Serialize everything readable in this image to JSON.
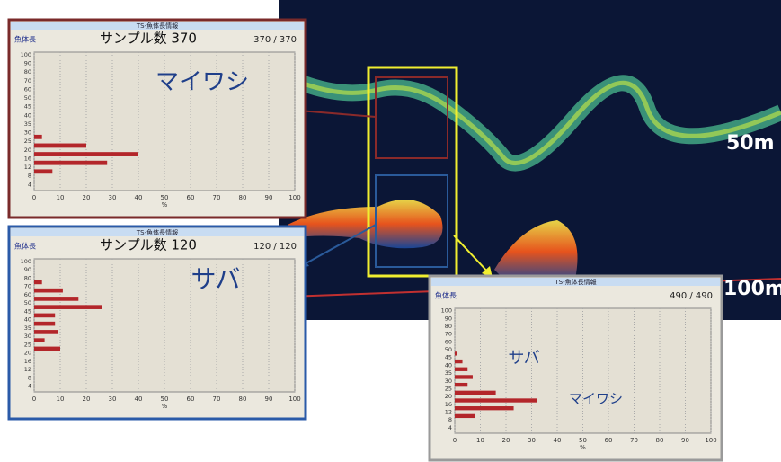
{
  "echogram": {
    "depth_labels": [
      "50m",
      "100m"
    ]
  },
  "chart_data": [
    {
      "type": "bar",
      "orientation": "horizontal",
      "title": "TS-魚体長情報",
      "y_label": "魚体長",
      "sample_label": "サンプル数 370",
      "count": "370 / 370",
      "annotations": [
        "マイワシ"
      ],
      "xlabel": "%",
      "categories": [
        "100",
        "90",
        "80",
        "70",
        "60",
        "50",
        "45",
        "40",
        "35",
        "30",
        "25",
        "20",
        "16",
        "12",
        "8",
        "4"
      ],
      "values": [
        0,
        0,
        0,
        0,
        0,
        0,
        0,
        0,
        0,
        3,
        20,
        40,
        28,
        7,
        0,
        0
      ],
      "color": "#b3262a",
      "xlim": [
        0,
        100
      ],
      "xticks": [
        0,
        10,
        20,
        30,
        40,
        50,
        60,
        70,
        80,
        90,
        100
      ],
      "grid": true
    },
    {
      "type": "bar",
      "orientation": "horizontal",
      "title": "TS-魚体長情報",
      "y_label": "魚体長",
      "sample_label": "サンプル数 120",
      "count": "120 / 120",
      "annotations": [
        "サバ"
      ],
      "xlabel": "%",
      "categories": [
        "100",
        "90",
        "80",
        "70",
        "60",
        "50",
        "45",
        "40",
        "35",
        "30",
        "25",
        "20",
        "16",
        "12",
        "8",
        "4"
      ],
      "values": [
        0,
        0,
        3,
        11,
        17,
        26,
        8,
        8,
        9,
        4,
        10,
        0,
        0,
        0,
        0,
        0
      ],
      "color": "#b3262a",
      "xlim": [
        0,
        100
      ],
      "xticks": [
        0,
        10,
        20,
        30,
        40,
        50,
        60,
        70,
        80,
        90,
        100
      ],
      "grid": true
    },
    {
      "type": "bar",
      "orientation": "horizontal",
      "title": "TS-魚体長情報",
      "y_label": "魚体長",
      "count": "490 / 490",
      "annotations": [
        "サバ",
        "マイワシ"
      ],
      "xlabel": "%",
      "categories": [
        "100",
        "90",
        "80",
        "70",
        "60",
        "50",
        "45",
        "40",
        "35",
        "30",
        "25",
        "20",
        "16",
        "12",
        "8",
        "4"
      ],
      "values": [
        0,
        0,
        0,
        0,
        0,
        1,
        3,
        5,
        7,
        5,
        16,
        32,
        23,
        8,
        0,
        0
      ],
      "color": "#b3262a",
      "xlim": [
        0,
        100
      ],
      "xticks": [
        0,
        10,
        20,
        30,
        40,
        50,
        60,
        70,
        80,
        90,
        100
      ],
      "grid": true
    }
  ]
}
